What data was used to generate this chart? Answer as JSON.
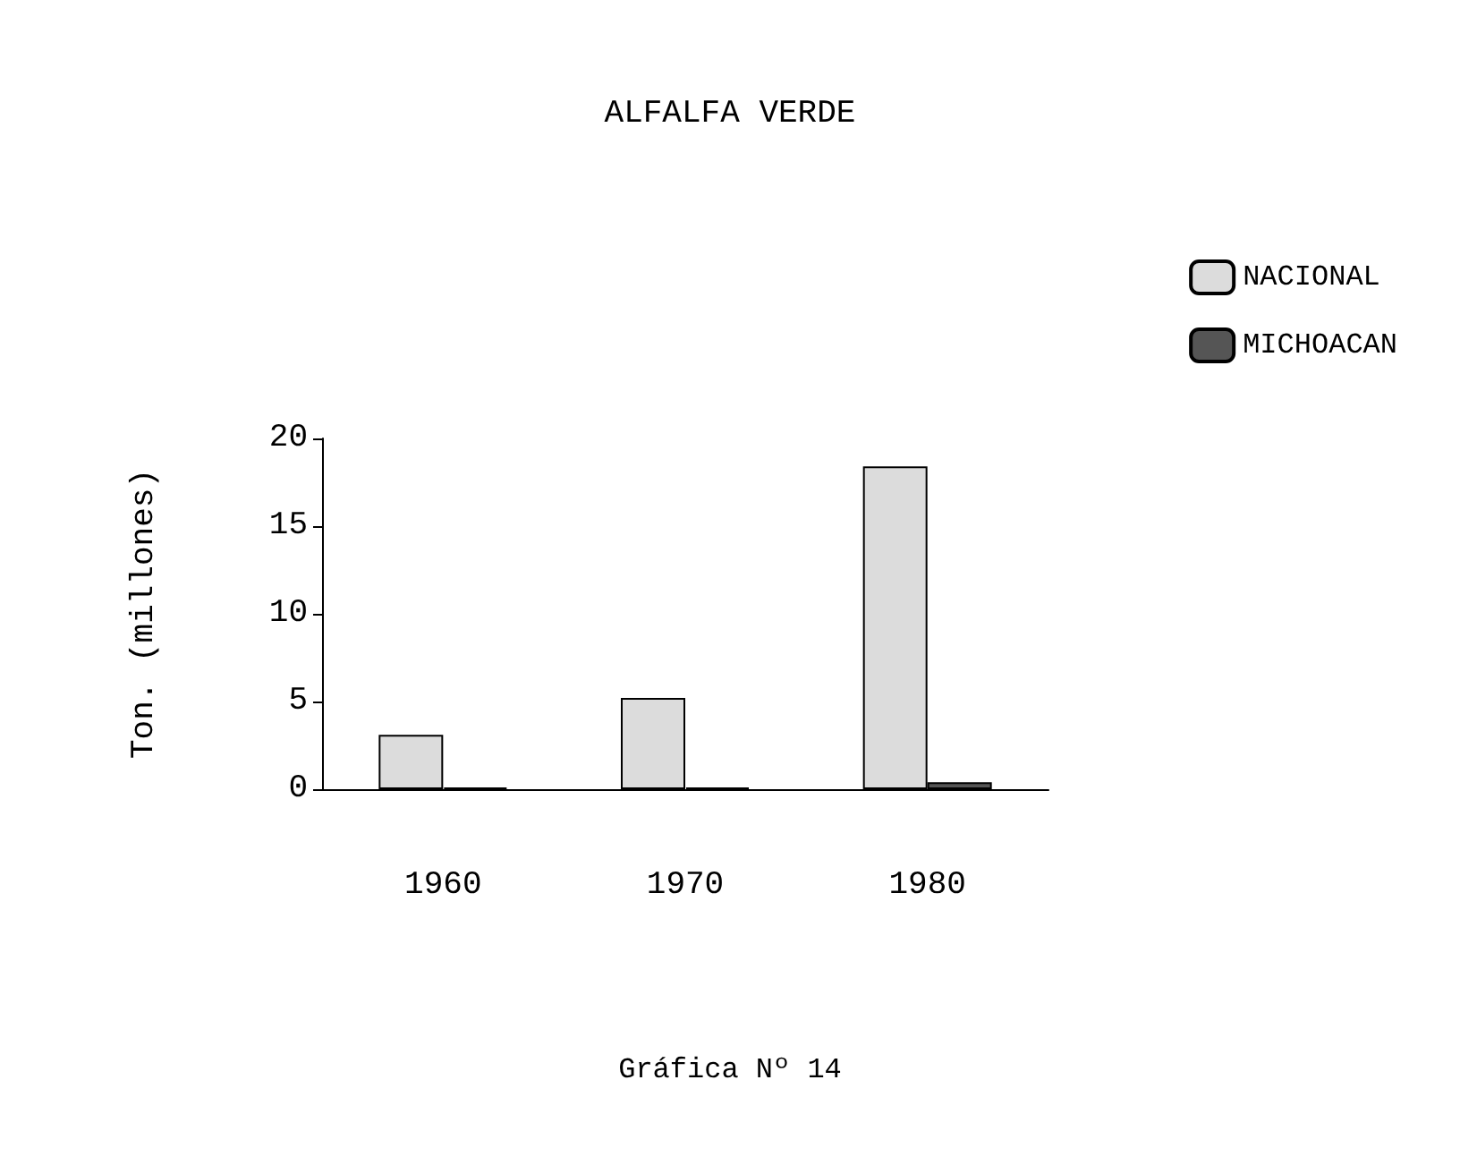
{
  "chart_data": {
    "type": "bar",
    "title": "ALFALFA VERDE",
    "ylabel": "Ton. (millones)",
    "annotations": [
      "Gráfica Nº 14"
    ],
    "categories": [
      "1960",
      "1970",
      "1980"
    ],
    "series": [
      {
        "name": "NACIONAL",
        "color": "#dcdcdc",
        "values": [
          3.1,
          5.2,
          18.4
        ]
      },
      {
        "name": "MICHOACAN",
        "color": "#555555",
        "values": [
          0.1,
          0.1,
          0.4
        ]
      }
    ],
    "ylim": [
      0,
      20
    ],
    "yticks": [
      0,
      5,
      10,
      15,
      20
    ],
    "grid": false,
    "legend": "top right"
  }
}
